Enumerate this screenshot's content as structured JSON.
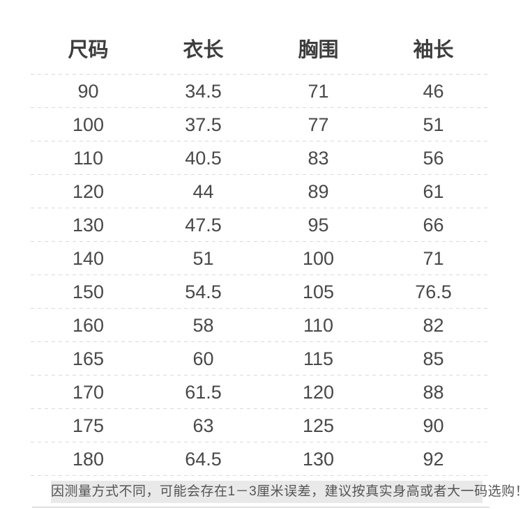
{
  "chart_data": {
    "type": "table",
    "title": "",
    "columns": [
      "尺码",
      "衣长",
      "胸围",
      "袖长"
    ],
    "rows": [
      [
        "90",
        "34.5",
        "71",
        "46"
      ],
      [
        "100",
        "37.5",
        "77",
        "51"
      ],
      [
        "110",
        "40.5",
        "83",
        "56"
      ],
      [
        "120",
        "44",
        "89",
        "61"
      ],
      [
        "130",
        "47.5",
        "95",
        "66"
      ],
      [
        "140",
        "51",
        "100",
        "71"
      ],
      [
        "150",
        "54.5",
        "105",
        "76.5"
      ],
      [
        "160",
        "58",
        "110",
        "82"
      ],
      [
        "165",
        "60",
        "115",
        "85"
      ],
      [
        "170",
        "61.5",
        "120",
        "88"
      ],
      [
        "175",
        "63",
        "125",
        "90"
      ],
      [
        "180",
        "64.5",
        "130",
        "92"
      ]
    ]
  },
  "footer": {
    "note": "因测量方式不同，可能会存在1－3厘米误差，建议按真实身高或者大一码选购！"
  },
  "colors": {
    "background": "#ffffff",
    "header_text": "#3d3d3d",
    "cell_text": "#484848",
    "separator": "#d9d9d9",
    "footer_background": "#e9e9e9",
    "footer_text": "#555555",
    "bottom_divider": "#dedede"
  }
}
